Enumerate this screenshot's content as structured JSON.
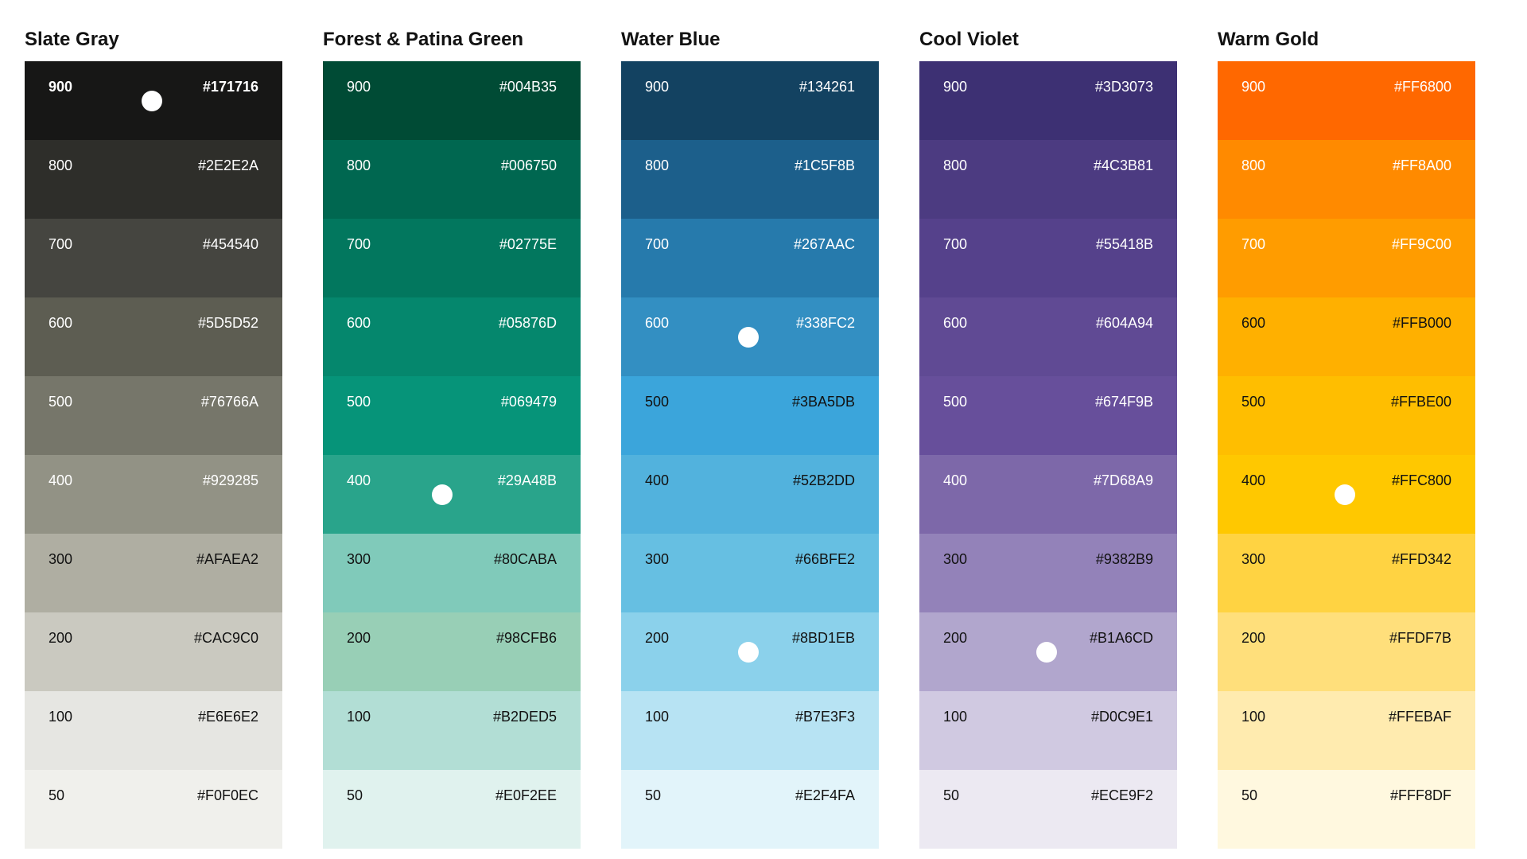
{
  "palettes": [
    {
      "name": "Slate Gray",
      "marker_shade": "900",
      "swatches": [
        {
          "shade": "900",
          "hex": "#171716",
          "text_color": "#FFFFFF",
          "bold": true
        },
        {
          "shade": "800",
          "hex": "#2E2E2A",
          "text_color": "#FFFFFF"
        },
        {
          "shade": "700",
          "hex": "#454540",
          "text_color": "#FFFFFF"
        },
        {
          "shade": "600",
          "hex": "#5D5D52",
          "text_color": "#FFFFFF"
        },
        {
          "shade": "500",
          "hex": "#76766A",
          "text_color": "#FFFFFF"
        },
        {
          "shade": "400",
          "hex": "#929285",
          "text_color": "#FFFFFF"
        },
        {
          "shade": "300",
          "hex": "#AFAEA2",
          "text_color": "#121212"
        },
        {
          "shade": "200",
          "hex": "#CAC9C0",
          "text_color": "#121212"
        },
        {
          "shade": "100",
          "hex": "#E6E6E2",
          "text_color": "#121212"
        },
        {
          "shade": "50",
          "hex": "#F0F0EC",
          "text_color": "#121212"
        }
      ]
    },
    {
      "name": "Forest & Patina Green",
      "marker_shade": "400",
      "swatches": [
        {
          "shade": "900",
          "hex": "#004B35",
          "text_color": "#FFFFFF"
        },
        {
          "shade": "800",
          "hex": "#006750",
          "text_color": "#FFFFFF"
        },
        {
          "shade": "700",
          "hex": "#02775E",
          "text_color": "#FFFFFF"
        },
        {
          "shade": "600",
          "hex": "#05876D",
          "text_color": "#FFFFFF"
        },
        {
          "shade": "500",
          "hex": "#069479",
          "text_color": "#FFFFFF"
        },
        {
          "shade": "400",
          "hex": "#29A48B",
          "text_color": "#FFFFFF"
        },
        {
          "shade": "300",
          "hex": "#80CABA",
          "text_color": "#121212"
        },
        {
          "shade": "200",
          "hex": "#98CFB6",
          "text_color": "#121212"
        },
        {
          "shade": "100",
          "hex": "#B2DED5",
          "text_color": "#121212"
        },
        {
          "shade": "50",
          "hex": "#E0F2EE",
          "text_color": "#121212"
        }
      ]
    },
    {
      "name": "Water Blue",
      "marker_shades": [
        "600",
        "200"
      ],
      "swatches": [
        {
          "shade": "900",
          "hex": "#134261",
          "text_color": "#FFFFFF"
        },
        {
          "shade": "800",
          "hex": "#1C5F8B",
          "text_color": "#FFFFFF"
        },
        {
          "shade": "700",
          "hex": "#267AAC",
          "text_color": "#FFFFFF"
        },
        {
          "shade": "600",
          "hex": "#338FC2",
          "text_color": "#FFFFFF"
        },
        {
          "shade": "500",
          "hex": "#3BA5DB",
          "text_color": "#121212"
        },
        {
          "shade": "400",
          "hex": "#52B2DD",
          "text_color": "#121212"
        },
        {
          "shade": "300",
          "hex": "#66BFE2",
          "text_color": "#121212"
        },
        {
          "shade": "200",
          "hex": "#8BD1EB",
          "text_color": "#121212"
        },
        {
          "shade": "100",
          "hex": "#B7E3F3",
          "text_color": "#121212"
        },
        {
          "shade": "50",
          "hex": "#E2F4FA",
          "text_color": "#121212"
        }
      ]
    },
    {
      "name": "Cool Violet",
      "marker_shade": "200",
      "swatches": [
        {
          "shade": "900",
          "hex": "#3D3073",
          "text_color": "#FFFFFF"
        },
        {
          "shade": "800",
          "hex": "#4C3B81",
          "text_color": "#FFFFFF"
        },
        {
          "shade": "700",
          "hex": "#55418B",
          "text_color": "#FFFFFF"
        },
        {
          "shade": "600",
          "hex": "#604A94",
          "text_color": "#FFFFFF"
        },
        {
          "shade": "500",
          "hex": "#674F9B",
          "text_color": "#FFFFFF"
        },
        {
          "shade": "400",
          "hex": "#7D68A9",
          "text_color": "#FFFFFF"
        },
        {
          "shade": "300",
          "hex": "#9382B9",
          "text_color": "#121212"
        },
        {
          "shade": "200",
          "hex": "#B1A6CD",
          "text_color": "#121212"
        },
        {
          "shade": "100",
          "hex": "#D0C9E1",
          "text_color": "#121212"
        },
        {
          "shade": "50",
          "hex": "#ECE9F2",
          "text_color": "#121212"
        }
      ]
    },
    {
      "name": "Warm Gold",
      "marker_shade": "400",
      "swatches": [
        {
          "shade": "900",
          "hex": "#FF6800",
          "text_color": "#FFFFFF"
        },
        {
          "shade": "800",
          "hex": "#FF8A00",
          "text_color": "#FFFFFF"
        },
        {
          "shade": "700",
          "hex": "#FF9C00",
          "text_color": "#FFFFFF"
        },
        {
          "shade": "600",
          "hex": "#FFB000",
          "text_color": "#121212"
        },
        {
          "shade": "500",
          "hex": "#FFBE00",
          "text_color": "#121212"
        },
        {
          "shade": "400",
          "hex": "#FFC800",
          "text_color": "#121212"
        },
        {
          "shade": "300",
          "hex": "#FFD342",
          "text_color": "#121212"
        },
        {
          "shade": "200",
          "hex": "#FFDF7B",
          "text_color": "#121212"
        },
        {
          "shade": "100",
          "hex": "#FFEBAF",
          "text_color": "#121212"
        },
        {
          "shade": "50",
          "hex": "#FFF8DF",
          "text_color": "#121212"
        }
      ]
    }
  ]
}
